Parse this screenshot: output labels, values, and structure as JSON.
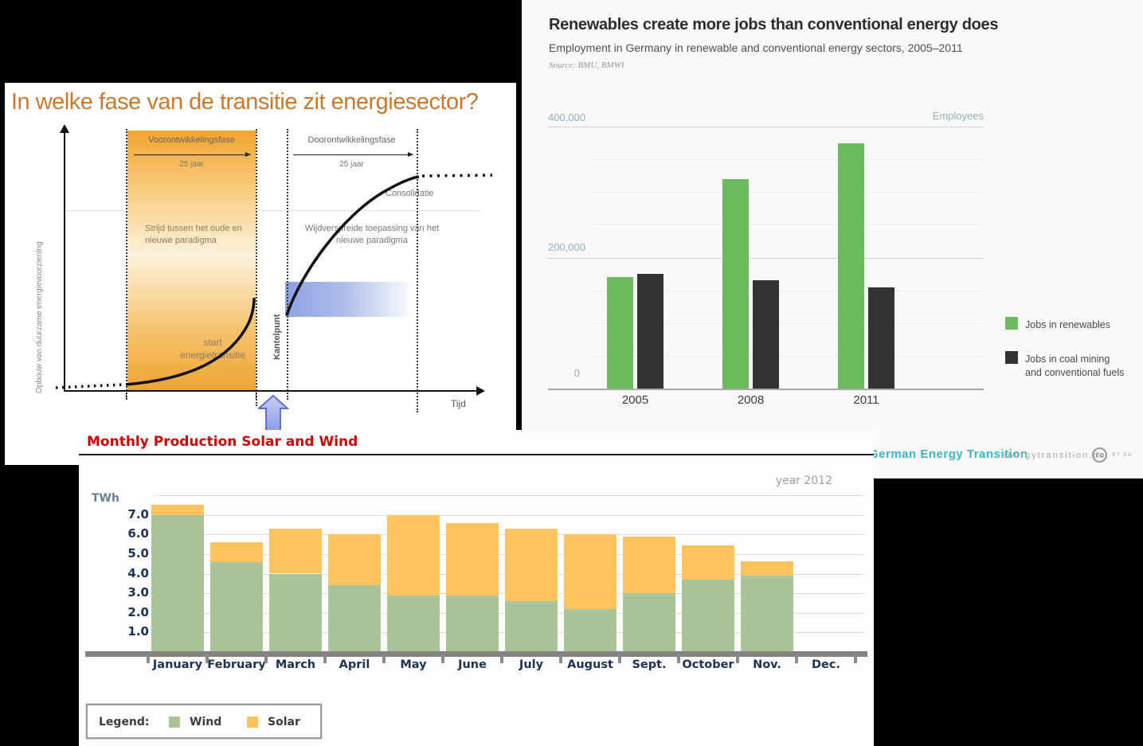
{
  "dutch_chart": {
    "title": "In welke fase van de transitie zit energiesector?",
    "y_axis_label": "Opbouw van duurzame energievoorziening",
    "x_axis_label": "Tijd",
    "phase1": {
      "label": "Voorontwikkelingsfase",
      "duration": "25 jaar"
    },
    "phase2": {
      "label": "Doorontwikkelingsfase",
      "duration": "25 jaar"
    },
    "annotations": {
      "left_block": "Strijd tussen het oude en nieuwe paradigma",
      "right_block": "Wijdverspreide toepassing van het nieuwe paradigma",
      "start": "start energietransitie",
      "tipping_point": "Kantelpunt",
      "consolidation": "Consolidatie"
    }
  },
  "jobs_chart": {
    "title": "Renewables create more jobs than conventional energy does",
    "subtitle": "Employment in Germany in renewable and conventional energy sectors, 2005–2011",
    "source": "Source: BMU, BMWI",
    "unit_label": "Employees",
    "footer": {
      "brand": "German Energy Transition",
      "domain": "energytransition.de",
      "license_icon": "cc",
      "license_terms": "BY SA"
    }
  },
  "monthly_chart": {
    "title": "Monthly Production Solar and Wind",
    "year_label": "year 2012",
    "unit_label": "TWh",
    "legend_label": "Legend:"
  },
  "chart_data": [
    {
      "type": "line",
      "title": "In welke fase van de transitie zit energiesector?",
      "description": "S-curve diagram of the energy transition phases",
      "xlabel": "Tijd",
      "ylabel": "Opbouw van duurzame energievoorziening",
      "phases": [
        {
          "label": "Voorontwikkelingsfase",
          "duration": "25 jaar"
        },
        {
          "label": "Doorontwikkelingsfase",
          "duration": "25 jaar"
        }
      ],
      "annotations": [
        "Strijd tussen het oude en nieuwe paradigma",
        "start energietransitie",
        "Kantelpunt",
        "Wijdverspreide toepassing van het nieuwe paradigma",
        "Consolidatie"
      ]
    },
    {
      "type": "bar",
      "title": "Renewables create more jobs than conventional energy does",
      "categories": [
        "2005",
        "2008",
        "2011"
      ],
      "series": [
        {
          "name": "Jobs in renewables",
          "color": "#6cbb5d",
          "values": [
            170000,
            320000,
            375000
          ]
        },
        {
          "name": "Jobs in coal mining and conventional fuels",
          "color": "#333333",
          "values": [
            175000,
            165000,
            155000
          ]
        }
      ],
      "ylabel": "Employees",
      "ylim": [
        0,
        400000
      ],
      "y_ticks": [
        "400,000",
        "200,000",
        "0"
      ],
      "legend_position": "right",
      "grid": true
    },
    {
      "type": "bar-stacked",
      "title": "Monthly Production Solar and Wind",
      "categories": [
        "January",
        "February",
        "March",
        "April",
        "May",
        "June",
        "July",
        "August",
        "Sept.",
        "October",
        "Nov.",
        "Dec."
      ],
      "series": [
        {
          "name": "Wind",
          "color": "#a9c39a",
          "values": [
            7.0,
            4.6,
            4.0,
            3.4,
            2.9,
            2.9,
            2.6,
            2.2,
            3.0,
            3.7,
            3.9,
            0
          ]
        },
        {
          "name": "Solar",
          "color": "#fbc45d",
          "values": [
            0.5,
            1.0,
            2.3,
            2.6,
            4.1,
            3.7,
            3.7,
            3.8,
            2.9,
            1.75,
            0.75,
            0
          ]
        }
      ],
      "ylabel": "TWh",
      "ylim": [
        0,
        8
      ],
      "y_ticks": [
        "7.0",
        "6.0",
        "5.0",
        "4.0",
        "3.0",
        "2.0",
        "1.0"
      ],
      "legend_position": "bottom",
      "grid": true
    }
  ]
}
